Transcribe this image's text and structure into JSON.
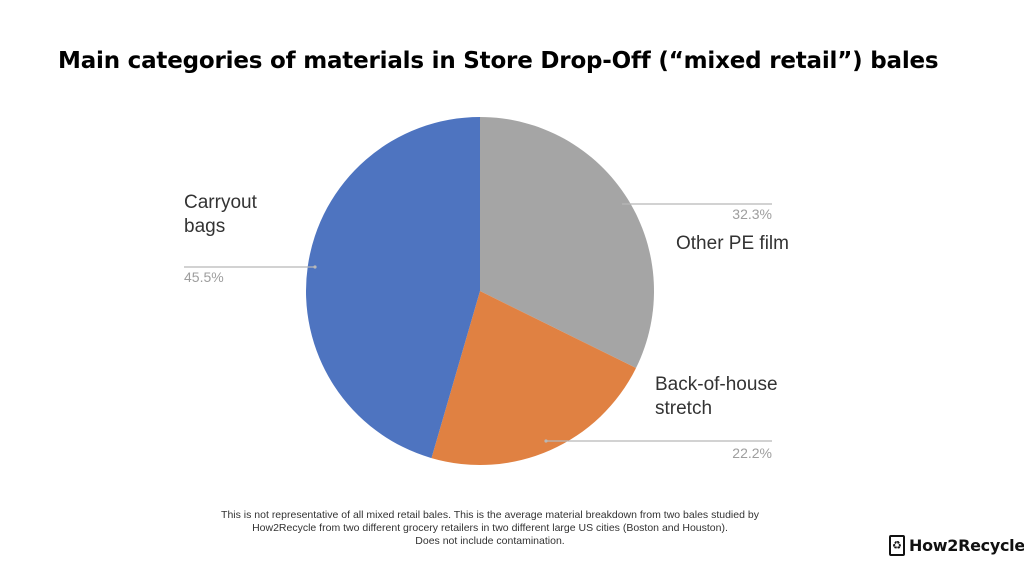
{
  "chart_data": {
    "type": "pie",
    "title": "Main categories of materials in Store Drop-Off (“mixed retail”) bales",
    "slices": [
      {
        "label_lines": [
          "Other PE film"
        ],
        "value": 32.3,
        "value_label": "32.3%",
        "color": "#a5a5a5"
      },
      {
        "label_lines": [
          "Back-of-house",
          "stretch"
        ],
        "value": 22.2,
        "value_label": "22.2%",
        "color": "#e08142"
      },
      {
        "label_lines": [
          "Carryout",
          "bags"
        ],
        "value": 45.5,
        "value_label": "45.5%",
        "color": "#4e74c0"
      }
    ],
    "start_angle_deg": 0,
    "direction": "clockwise"
  },
  "footnote": {
    "lines": [
      "This is not representative of all mixed retail bales. This is the average material breakdown  from two bales studied by",
      "How2Recycle from two different grocery retailers in two different large US cities (Boston and Houston).",
      "Does not include contamination."
    ]
  },
  "logo": {
    "text": "How2Recycle",
    "icon": "recycle-icon"
  }
}
